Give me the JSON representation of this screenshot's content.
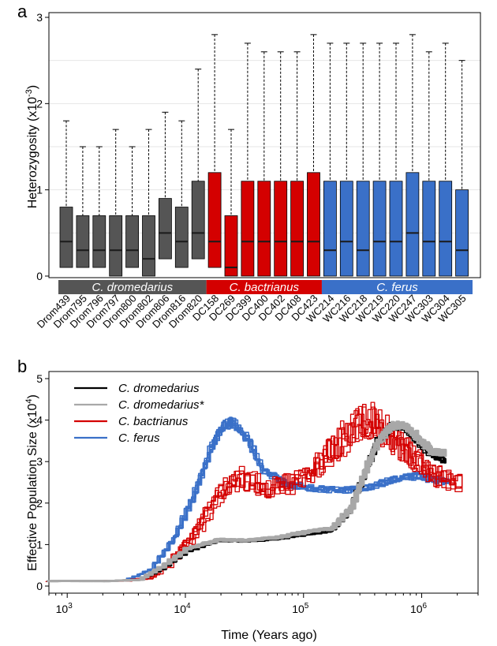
{
  "panels": {
    "a": "a",
    "b": "b"
  },
  "colors": {
    "dromedarius": "#555555",
    "bactrianus": "#d40000",
    "ferus": "#3a70c8",
    "dromedarius_star": "#a8a8a8",
    "dromedarius_line": "#000000"
  },
  "chart_data": [
    {
      "type": "boxplot",
      "panel": "a",
      "ylabel": "Heterozygosity (x10",
      "ylabel_exp": "-3",
      "ylabel_close": ")",
      "ylim": [
        0,
        3
      ],
      "yticks": [
        "0",
        "1",
        "2",
        "3"
      ],
      "grid": "horizontal",
      "groups": [
        {
          "name": "C. dromedarius",
          "color": "#555555",
          "samples": [
            "Drom439",
            "Drom795",
            "Drom796",
            "Drom797",
            "Drom800",
            "Drom802",
            "Drom806",
            "Drom816",
            "Drom820"
          ]
        },
        {
          "name": "C. bactrianus",
          "color": "#d40000",
          "samples": [
            "DC158",
            "DC269",
            "DC399",
            "DC400",
            "DC402",
            "DC408",
            "DC423"
          ]
        },
        {
          "name": "C. ferus",
          "color": "#3a70c8",
          "samples": [
            "WC214",
            "WC216",
            "WC218",
            "WC219",
            "WC220",
            "WC247",
            "WC303",
            "WC304",
            "WC305"
          ]
        }
      ],
      "boxes": [
        {
          "sample": "Drom439",
          "min": 0,
          "q1": 0.1,
          "median": 0.4,
          "q3": 0.8,
          "max": 1.8
        },
        {
          "sample": "Drom795",
          "min": 0,
          "q1": 0.1,
          "median": 0.3,
          "q3": 0.7,
          "max": 1.5
        },
        {
          "sample": "Drom796",
          "min": 0,
          "q1": 0.1,
          "median": 0.3,
          "q3": 0.7,
          "max": 1.5
        },
        {
          "sample": "Drom797",
          "min": 0,
          "q1": 0.0,
          "median": 0.3,
          "q3": 0.7,
          "max": 1.7
        },
        {
          "sample": "Drom800",
          "min": 0,
          "q1": 0.1,
          "median": 0.3,
          "q3": 0.7,
          "max": 1.5
        },
        {
          "sample": "Drom802",
          "min": 0,
          "q1": 0.0,
          "median": 0.2,
          "q3": 0.7,
          "max": 1.7
        },
        {
          "sample": "Drom806",
          "min": 0,
          "q1": 0.2,
          "median": 0.5,
          "q3": 0.9,
          "max": 1.9
        },
        {
          "sample": "Drom816",
          "min": 0,
          "q1": 0.1,
          "median": 0.4,
          "q3": 0.8,
          "max": 1.8
        },
        {
          "sample": "Drom820",
          "min": 0,
          "q1": 0.2,
          "median": 0.5,
          "q3": 1.1,
          "max": 2.4
        },
        {
          "sample": "DC158",
          "min": 0,
          "q1": 0.1,
          "median": 0.4,
          "q3": 1.2,
          "max": 2.8
        },
        {
          "sample": "DC269",
          "min": 0,
          "q1": 0.0,
          "median": 0.1,
          "q3": 0.7,
          "max": 1.7
        },
        {
          "sample": "DC399",
          "min": 0,
          "q1": 0.0,
          "median": 0.4,
          "q3": 1.1,
          "max": 2.7
        },
        {
          "sample": "DC400",
          "min": 0,
          "q1": 0.0,
          "median": 0.4,
          "q3": 1.1,
          "max": 2.6
        },
        {
          "sample": "DC402",
          "min": 0,
          "q1": 0.0,
          "median": 0.4,
          "q3": 1.1,
          "max": 2.6
        },
        {
          "sample": "DC408",
          "min": 0,
          "q1": 0.0,
          "median": 0.4,
          "q3": 1.1,
          "max": 2.6
        },
        {
          "sample": "DC423",
          "min": 0,
          "q1": 0.0,
          "median": 0.4,
          "q3": 1.2,
          "max": 2.8
        },
        {
          "sample": "WC214",
          "min": 0,
          "q1": 0.0,
          "median": 0.3,
          "q3": 1.1,
          "max": 2.7
        },
        {
          "sample": "WC216",
          "min": 0,
          "q1": 0.0,
          "median": 0.4,
          "q3": 1.1,
          "max": 2.7
        },
        {
          "sample": "WC218",
          "min": 0,
          "q1": 0.0,
          "median": 0.3,
          "q3": 1.1,
          "max": 2.7
        },
        {
          "sample": "WC219",
          "min": 0,
          "q1": 0.0,
          "median": 0.4,
          "q3": 1.1,
          "max": 2.7
        },
        {
          "sample": "WC220",
          "min": 0,
          "q1": 0.0,
          "median": 0.4,
          "q3": 1.1,
          "max": 2.7
        },
        {
          "sample": "WC247",
          "min": 0,
          "q1": 0.0,
          "median": 0.5,
          "q3": 1.2,
          "max": 2.8
        },
        {
          "sample": "WC303",
          "min": 0,
          "q1": 0.0,
          "median": 0.4,
          "q3": 1.1,
          "max": 2.6
        },
        {
          "sample": "WC304",
          "min": 0,
          "q1": 0.0,
          "median": 0.4,
          "q3": 1.1,
          "max": 2.7
        },
        {
          "sample": "WC305",
          "min": 0,
          "q1": 0.0,
          "median": 0.3,
          "q3": 1.0,
          "max": 2.5
        }
      ]
    },
    {
      "type": "line",
      "panel": "b",
      "xlabel": "Time (Years ago)",
      "ylabel": "Effective Population Size (x10",
      "ylabel_exp": "4",
      "ylabel_close": ")",
      "xscale": "log",
      "xlim": [
        700,
        3000000
      ],
      "ylim": [
        0,
        5
      ],
      "xticks": [
        {
          "base": "10",
          "exp": "3",
          "value": 1000
        },
        {
          "base": "10",
          "exp": "4",
          "value": 10000
        },
        {
          "base": "10",
          "exp": "5",
          "value": 100000
        },
        {
          "base": "10",
          "exp": "6",
          "value": 1000000
        }
      ],
      "yticks": [
        "0",
        "1",
        "2",
        "3",
        "4",
        "5"
      ],
      "legend_position": "top-left",
      "series": [
        {
          "name": "C. dromedarius",
          "color": "#000000",
          "width": 1.6,
          "count": 9,
          "x": [
            700,
            2000,
            4000,
            6000,
            10000,
            18000,
            30000,
            60000,
            100000,
            170000,
            250000,
            330000,
            420000,
            550000,
            700000,
            900000,
            1200000,
            1600000
          ],
          "y": [
            0.12,
            0.12,
            0.15,
            0.4,
            0.85,
            1.1,
            1.08,
            1.15,
            1.25,
            1.35,
            1.9,
            2.8,
            3.5,
            3.85,
            3.85,
            3.5,
            3.15,
            3.0
          ]
        },
        {
          "name": "C. dromedarius*",
          "color": "#a8a8a8",
          "width": 2.6,
          "count": 9,
          "x": [
            700,
            2000,
            4000,
            6000,
            10000,
            18000,
            30000,
            60000,
            100000,
            170000,
            250000,
            330000,
            420000,
            550000,
            700000,
            900000,
            1200000,
            1600000
          ],
          "y": [
            0.12,
            0.12,
            0.15,
            0.45,
            0.9,
            1.12,
            1.1,
            1.18,
            1.3,
            1.4,
            1.9,
            2.8,
            3.5,
            3.85,
            3.9,
            3.6,
            3.25,
            3.2
          ]
        },
        {
          "name": "C. bactrianus",
          "color": "#d40000",
          "width": 1.3,
          "count": 7,
          "x": [
            700,
            3000,
            5000,
            7000,
            10000,
            14000,
            20000,
            30000,
            50000,
            80000,
            120000,
            180000,
            250000,
            350000,
            500000,
            700000,
            1000000,
            1400000,
            2200000
          ],
          "y": [
            0.12,
            0.13,
            0.2,
            0.5,
            1.0,
            1.6,
            2.3,
            2.6,
            2.35,
            2.5,
            2.8,
            3.3,
            3.8,
            4.0,
            3.7,
            3.3,
            2.9,
            2.6,
            2.45
          ]
        },
        {
          "name": "C. ferus",
          "color": "#3a70c8",
          "width": 1.6,
          "count": 9,
          "x": [
            700,
            3000,
            5000,
            8000,
            12000,
            16000,
            20000,
            25000,
            32000,
            45000,
            70000,
            120000,
            200000,
            350000,
            600000,
            900000,
            1300000,
            1700000
          ],
          "y": [
            0.12,
            0.13,
            0.4,
            1.2,
            2.3,
            3.3,
            3.85,
            3.95,
            3.6,
            2.8,
            2.45,
            2.35,
            2.3,
            2.4,
            2.6,
            2.65,
            2.55,
            2.5
          ]
        }
      ]
    }
  ]
}
